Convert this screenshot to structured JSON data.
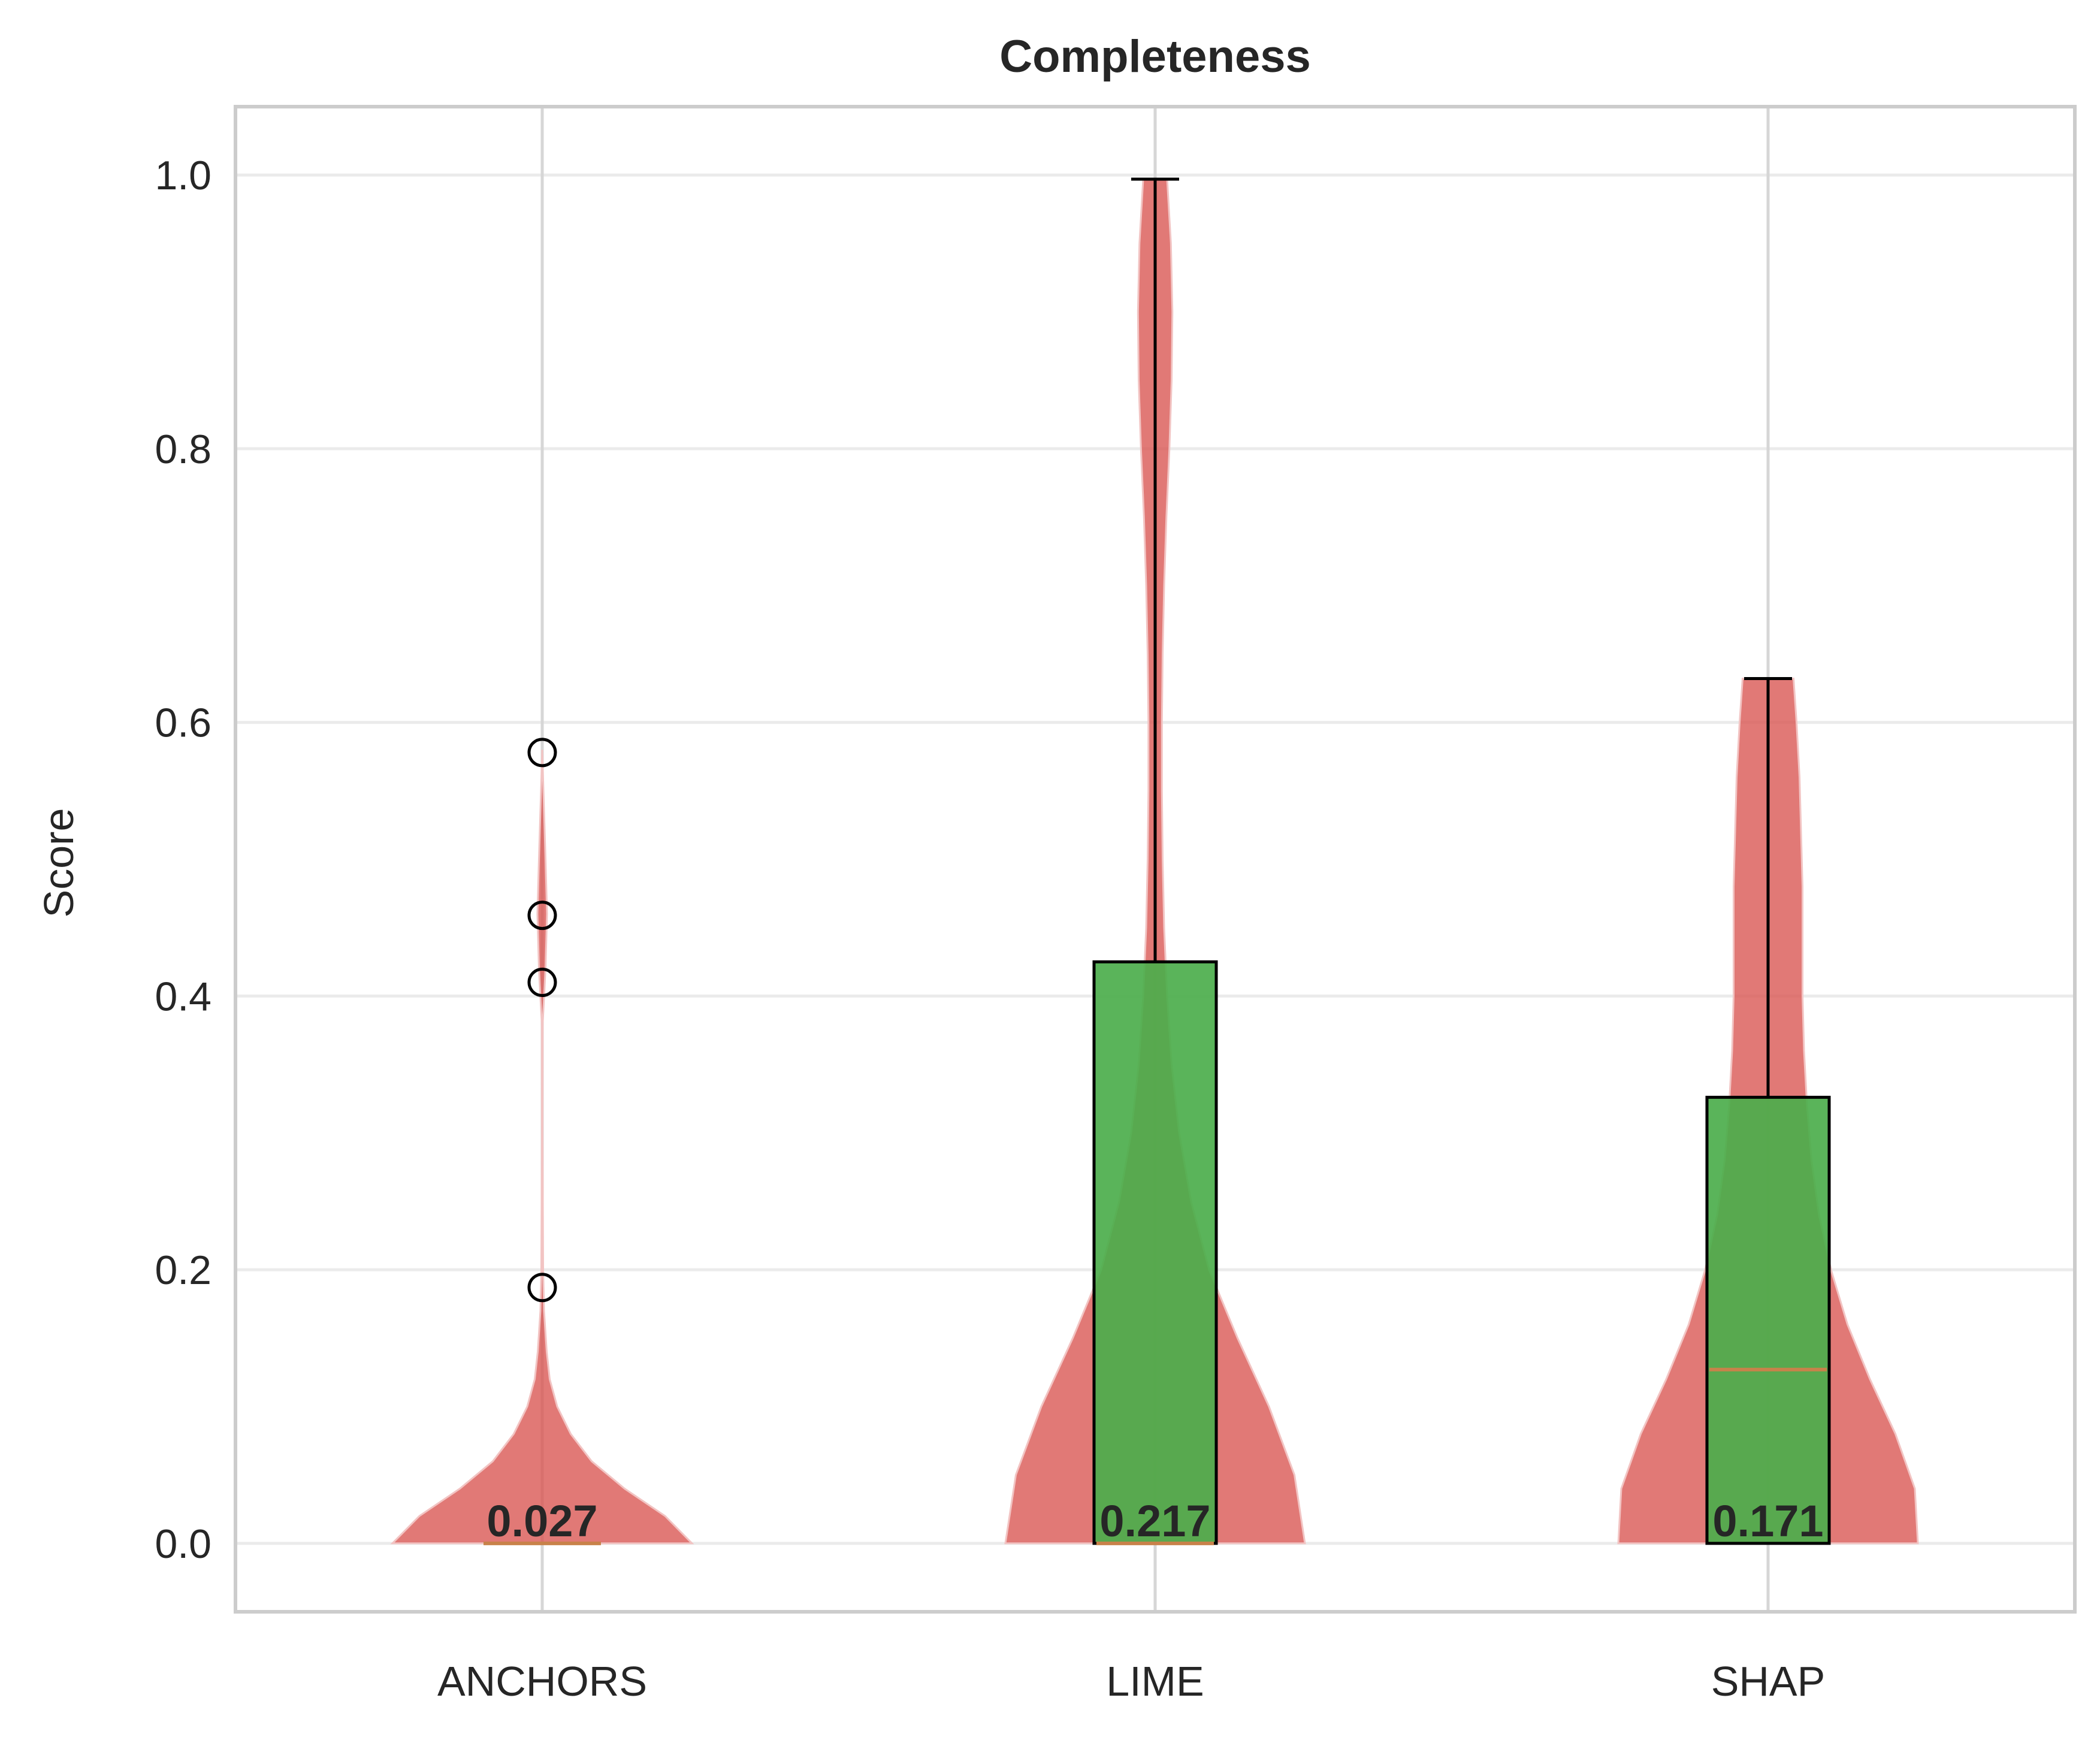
{
  "chart_data": {
    "type": "violin",
    "title": "Completeness",
    "xlabel": "",
    "ylabel": "Score",
    "ylim": [
      -0.05,
      1.05
    ],
    "yticks": [
      "0.0",
      "0.2",
      "0.4",
      "0.6",
      "0.8",
      "1.0"
    ],
    "categories": [
      "ANCHORS",
      "LIME",
      "SHAP"
    ],
    "grid": true,
    "series": [
      {
        "category": "ANCHORS",
        "mean_label": "0.027",
        "box": {
          "q1": 0.0,
          "median": 0.0,
          "q3": 0.0,
          "whisker_low": 0.0,
          "whisker_high": 0.0
        },
        "outliers": [
          0.187,
          0.41,
          0.459,
          0.578
        ],
        "density": [
          [
            0.0,
            1.0
          ],
          [
            0.02,
            0.82
          ],
          [
            0.04,
            0.55
          ],
          [
            0.06,
            0.33
          ],
          [
            0.08,
            0.19
          ],
          [
            0.1,
            0.1
          ],
          [
            0.12,
            0.05
          ],
          [
            0.14,
            0.03
          ],
          [
            0.17,
            0.012
          ],
          [
            0.2,
            0.006
          ],
          [
            0.3,
            0.002
          ],
          [
            0.38,
            0.003
          ],
          [
            0.42,
            0.022
          ],
          [
            0.46,
            0.032
          ],
          [
            0.5,
            0.022
          ],
          [
            0.55,
            0.008
          ],
          [
            0.58,
            0.0
          ]
        ]
      },
      {
        "category": "LIME",
        "mean_label": "0.217",
        "box": {
          "q1": 0.0,
          "median": 0.0,
          "q3": 0.425,
          "whisker_low": 0.0,
          "whisker_high": 0.997
        },
        "outliers": [],
        "density": [
          [
            0.0,
            1.0
          ],
          [
            0.05,
            0.93
          ],
          [
            0.1,
            0.76
          ],
          [
            0.15,
            0.55
          ],
          [
            0.2,
            0.36
          ],
          [
            0.25,
            0.24
          ],
          [
            0.3,
            0.16
          ],
          [
            0.35,
            0.11
          ],
          [
            0.4,
            0.08
          ],
          [
            0.45,
            0.06
          ],
          [
            0.5,
            0.05
          ],
          [
            0.55,
            0.045
          ],
          [
            0.6,
            0.045
          ],
          [
            0.65,
            0.05
          ],
          [
            0.7,
            0.06
          ],
          [
            0.75,
            0.075
          ],
          [
            0.8,
            0.095
          ],
          [
            0.85,
            0.11
          ],
          [
            0.9,
            0.115
          ],
          [
            0.95,
            0.105
          ],
          [
            0.997,
            0.08
          ]
        ]
      },
      {
        "category": "SHAP",
        "mean_label": "0.171",
        "box": {
          "q1": 0.0,
          "median": 0.127,
          "q3": 0.326,
          "whisker_low": 0.0,
          "whisker_high": 0.632
        },
        "outliers": [],
        "density": [
          [
            0.0,
            1.0
          ],
          [
            0.04,
            0.98
          ],
          [
            0.08,
            0.85
          ],
          [
            0.12,
            0.68
          ],
          [
            0.16,
            0.53
          ],
          [
            0.2,
            0.42
          ],
          [
            0.24,
            0.34
          ],
          [
            0.28,
            0.29
          ],
          [
            0.32,
            0.26
          ],
          [
            0.36,
            0.24
          ],
          [
            0.4,
            0.23
          ],
          [
            0.44,
            0.23
          ],
          [
            0.48,
            0.23
          ],
          [
            0.52,
            0.22
          ],
          [
            0.56,
            0.21
          ],
          [
            0.6,
            0.19
          ],
          [
            0.632,
            0.17
          ]
        ]
      }
    ],
    "colors": {
      "violin": "#d9534f",
      "box": "#4cae4c",
      "median": "#c8824a",
      "grid": "#ebebeb",
      "frame": "#cccccc",
      "text": "#262626"
    }
  }
}
